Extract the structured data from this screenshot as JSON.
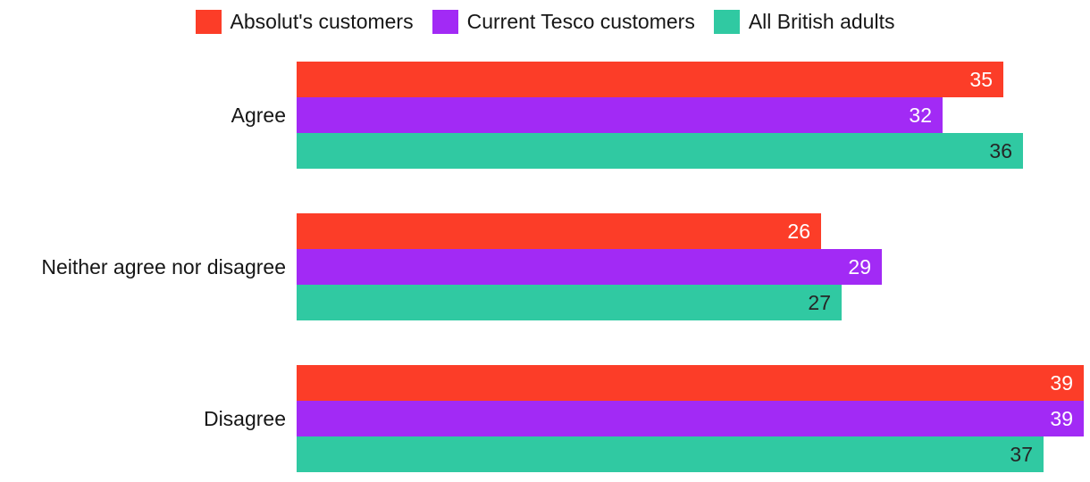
{
  "chart_data": {
    "type": "bar",
    "orientation": "horizontal",
    "title": "",
    "xlabel": "",
    "ylabel": "",
    "grid": false,
    "legend_position": "top",
    "categories": [
      "Agree",
      "Neither agree nor disagree",
      "Disagree"
    ],
    "series": [
      {
        "name": "Absolut's customers",
        "color": "#fc3d28",
        "label_color": "#ffffff",
        "values": [
          35,
          26,
          39
        ]
      },
      {
        "name": "Current Tesco customers",
        "color": "#a22af5",
        "label_color": "#ffffff",
        "values": [
          32,
          29,
          39
        ]
      },
      {
        "name": "All British adults",
        "color": "#30c9a2",
        "label_color": "#262626",
        "values": [
          36,
          27,
          37
        ]
      }
    ],
    "value_labels_shown": true,
    "xlim": [
      0,
      39
    ]
  },
  "colors": {
    "background": "#ffffff",
    "text": "#161616"
  }
}
